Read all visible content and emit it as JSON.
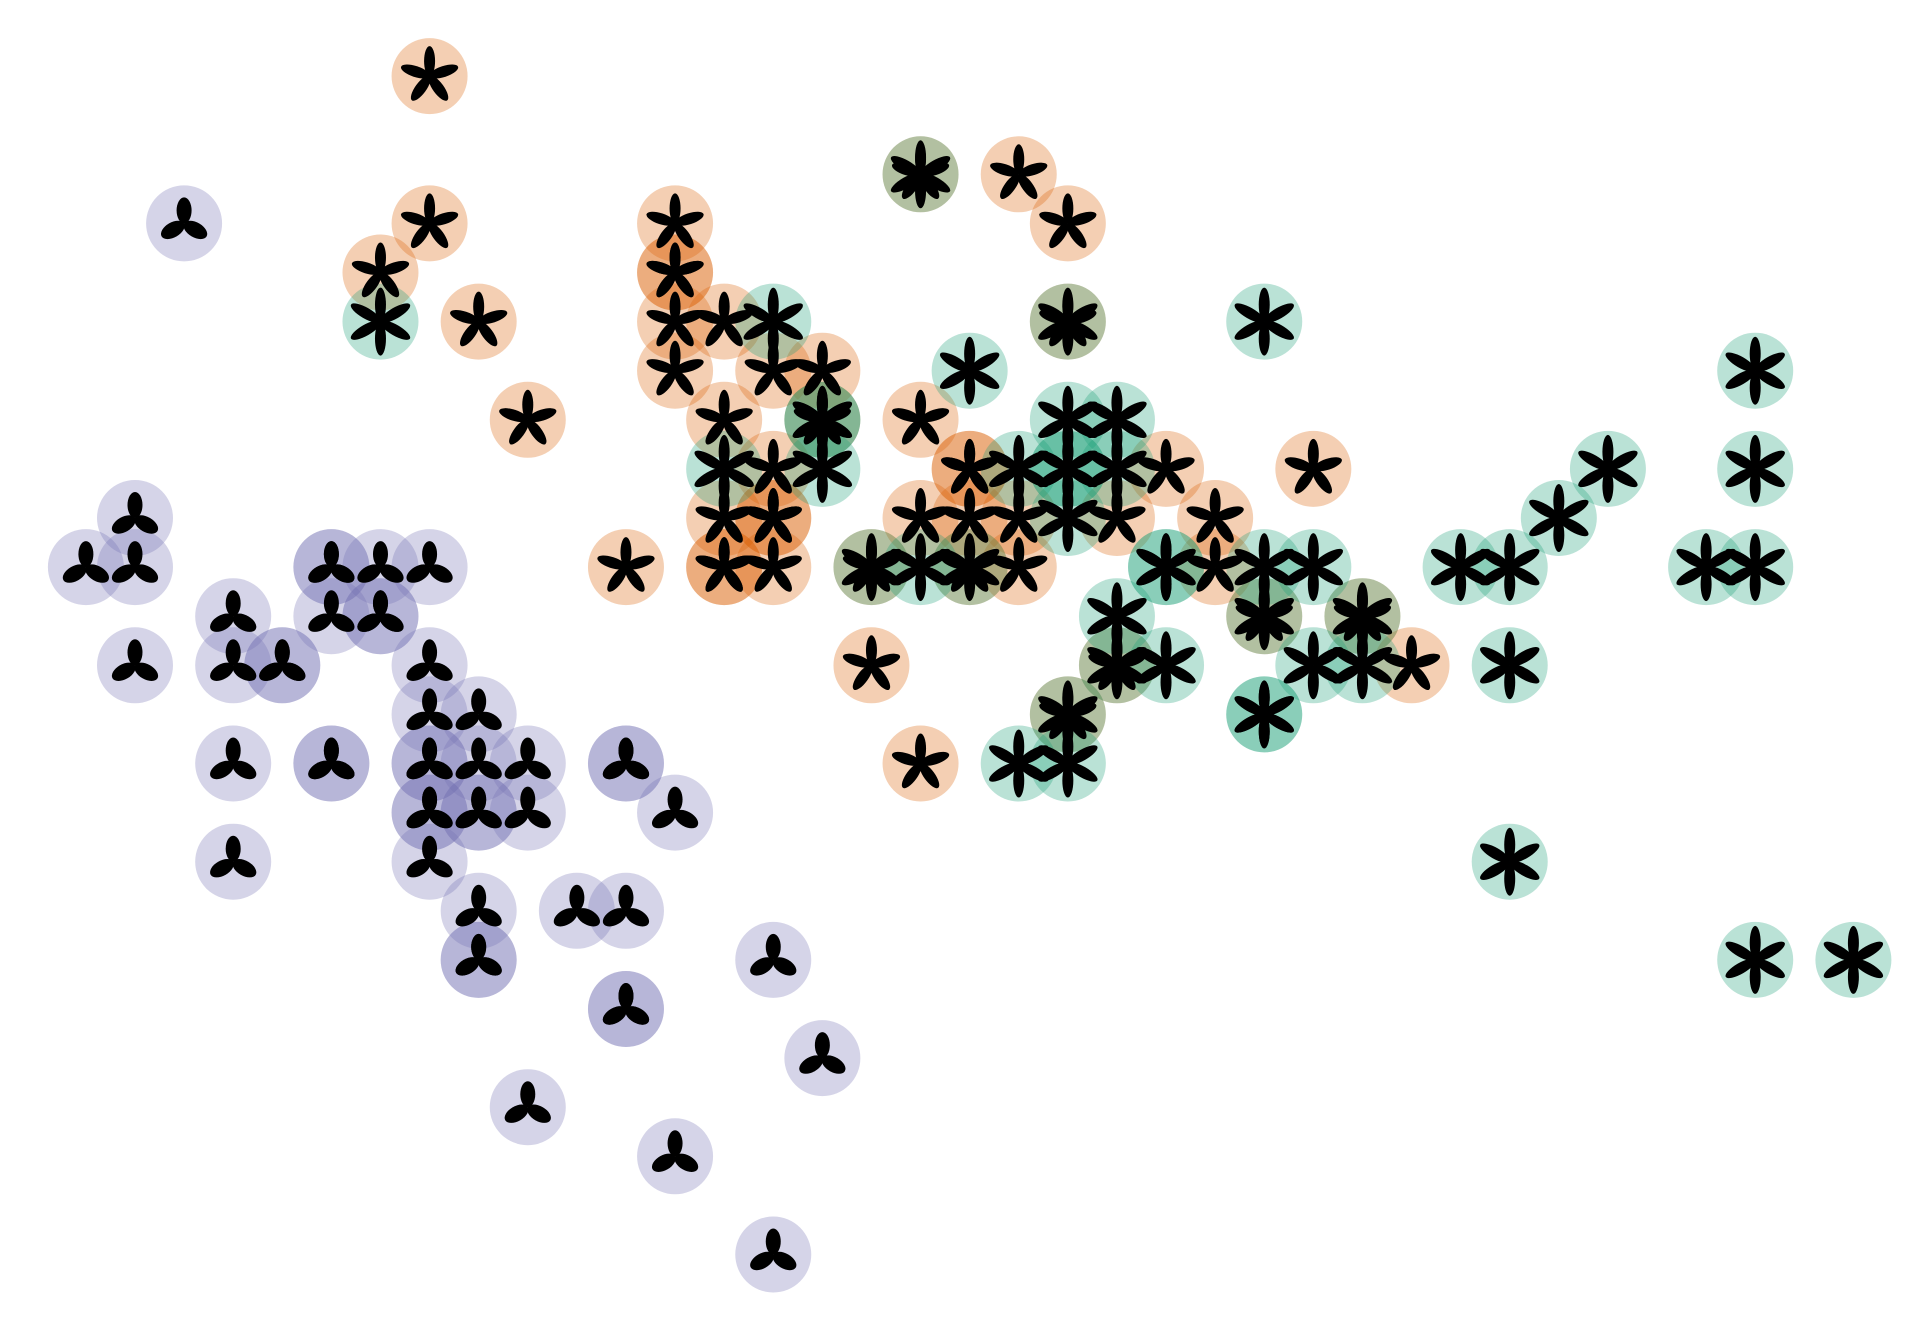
{
  "chart_data": {
    "type": "scatter",
    "xlim": [
      0,
      38
    ],
    "ylim": [
      0,
      26
    ],
    "alpha": 0.3,
    "series": [
      {
        "color": "#7570b3",
        "petals": 3,
        "x": [
          3,
          2,
          1,
          2,
          6,
          6,
          7,
          8,
          4,
          6,
          7,
          7,
          2,
          4,
          5,
          5,
          8,
          8,
          9,
          4,
          6,
          6,
          8,
          8,
          9,
          10,
          12,
          12,
          8,
          8,
          9,
          9,
          10,
          13,
          4,
          8,
          9,
          11,
          12,
          9,
          9,
          15,
          12,
          12,
          16,
          10,
          13,
          15
        ],
        "y": [
          22,
          16,
          15,
          15,
          15,
          15,
          15,
          15,
          14,
          14,
          14,
          14,
          13,
          13,
          13,
          13,
          13,
          12,
          12,
          11,
          11,
          11,
          11,
          11,
          11,
          11,
          11,
          11,
          10,
          10,
          10,
          10,
          10,
          10,
          9,
          9,
          8,
          8,
          8,
          7,
          7,
          7,
          6,
          6,
          5,
          4,
          3,
          1
        ]
      },
      {
        "color": "#d95f02",
        "petals": 5,
        "x": [
          8,
          8,
          7,
          9,
          10,
          13,
          13,
          13,
          13,
          14,
          13,
          15,
          16,
          14,
          18,
          15,
          14,
          15,
          15,
          12,
          14,
          14,
          15,
          20,
          21,
          19,
          19,
          23,
          26,
          18,
          19,
          20,
          22,
          24,
          20,
          24,
          17,
          28,
          18,
          18,
          21,
          17,
          19,
          25,
          27,
          22,
          21,
          16
        ],
        "y": [
          25,
          22,
          21,
          20,
          18,
          22,
          21,
          21,
          20,
          20,
          19,
          19,
          19,
          18,
          18,
          17,
          16,
          16,
          16,
          15,
          15,
          15,
          15,
          23,
          22,
          17,
          17,
          17,
          17,
          16,
          16,
          16,
          16,
          16,
          15,
          15,
          13,
          13,
          11,
          23,
          20,
          15,
          15,
          14,
          14,
          13,
          12,
          18
        ]
      },
      {
        "color": "#1b9e77",
        "petals": 6,
        "x": [
          7,
          15,
          19,
          25,
          16,
          16,
          21,
          22,
          14,
          16,
          20,
          21,
          21,
          22,
          21,
          18,
          23,
          23,
          25,
          26,
          22,
          23,
          26,
          27,
          25,
          25,
          20,
          21,
          29,
          30,
          31,
          32,
          30,
          30,
          35,
          35,
          34,
          35,
          35,
          37,
          18,
          21,
          17,
          19,
          25,
          27,
          22,
          21
        ],
        "y": [
          20,
          20,
          19,
          20,
          18,
          18,
          18,
          18,
          17,
          17,
          17,
          17,
          17,
          17,
          16,
          15,
          15,
          15,
          15,
          15,
          14,
          13,
          13,
          13,
          12,
          12,
          11,
          11,
          15,
          15,
          16,
          17,
          13,
          9,
          19,
          17,
          15,
          15,
          7,
          7,
          23,
          20,
          15,
          15,
          14,
          14,
          13,
          12
        ]
      }
    ]
  }
}
